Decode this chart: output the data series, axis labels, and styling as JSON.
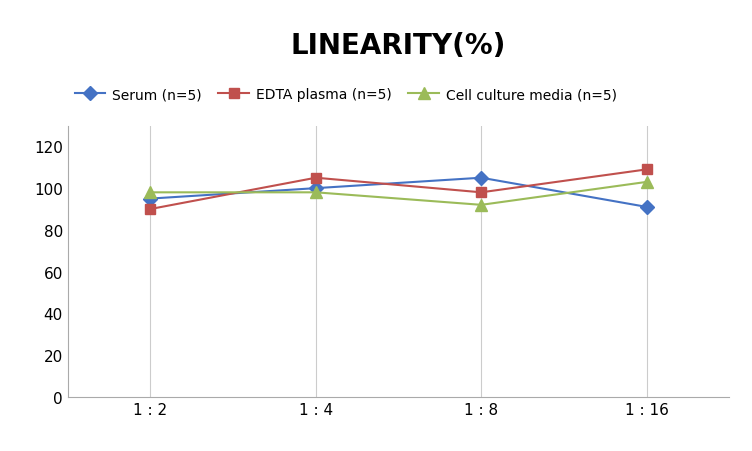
{
  "title": "LINEARITY(%)",
  "x_labels": [
    "1 : 2",
    "1 : 4",
    "1 : 8",
    "1 : 16"
  ],
  "x_values": [
    0,
    1,
    2,
    3
  ],
  "series": [
    {
      "label": "Serum (n=5)",
      "values": [
        95,
        100,
        105,
        91
      ],
      "color": "#4472C4",
      "marker": "D",
      "markersize": 7,
      "linewidth": 1.5
    },
    {
      "label": "EDTA plasma (n=5)",
      "values": [
        90,
        105,
        98,
        109
      ],
      "color": "#C0504D",
      "marker": "s",
      "markersize": 7,
      "linewidth": 1.5
    },
    {
      "label": "Cell culture media (n=5)",
      "values": [
        98,
        98,
        92,
        103
      ],
      "color": "#9BBB59",
      "marker": "^",
      "markersize": 8,
      "linewidth": 1.5
    }
  ],
  "ylim": [
    0,
    130
  ],
  "yticks": [
    0,
    20,
    40,
    60,
    80,
    100,
    120
  ],
  "background_color": "#ffffff",
  "grid_color": "#cccccc",
  "title_fontsize": 20,
  "title_fontweight": "bold",
  "legend_fontsize": 10,
  "tick_fontsize": 11,
  "spine_color": "#aaaaaa"
}
